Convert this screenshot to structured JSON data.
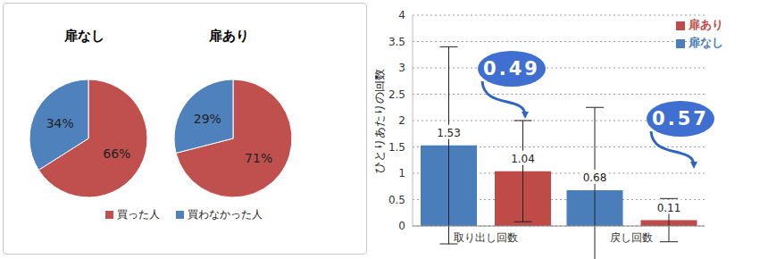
{
  "chart_data": [
    {
      "type": "pie",
      "title": "扉なし",
      "categories": [
        "買った人",
        "買わなかった人"
      ],
      "values": [
        66,
        34
      ],
      "value_labels": [
        "66%",
        "34%"
      ],
      "colors": [
        "#c0504d",
        "#4f81bd"
      ],
      "data_labels": true,
      "legend": "bottom"
    },
    {
      "type": "pie",
      "title": "扉あり",
      "categories": [
        "買った人",
        "買わなかった人"
      ],
      "values": [
        71,
        29
      ],
      "value_labels": [
        "71%",
        "29%"
      ],
      "colors": [
        "#c0504d",
        "#4f81bd"
      ],
      "data_labels": true
    },
    {
      "type": "bar",
      "ylabel": "ひとりあたりの回数",
      "categories": [
        "取り出し回数",
        "戻し回数"
      ],
      "series": [
        {
          "name": "扉なし",
          "color": "#4a7ebb",
          "values": [
            1.53,
            0.68
          ],
          "error": [
            1.87,
            1.57
          ]
        },
        {
          "name": "扉あり",
          "color": "#be4b48",
          "values": [
            1.04,
            0.11
          ],
          "error": [
            0.96,
            0.41
          ]
        }
      ],
      "ylim": [
        0,
        4
      ],
      "yticks": [
        0,
        0.5,
        1,
        1.5,
        2,
        2.5,
        3,
        3.5,
        4
      ],
      "grid": true,
      "legend": "top-right",
      "data_labels": true,
      "annotations": [
        "0.49",
        "0.57"
      ]
    }
  ]
}
